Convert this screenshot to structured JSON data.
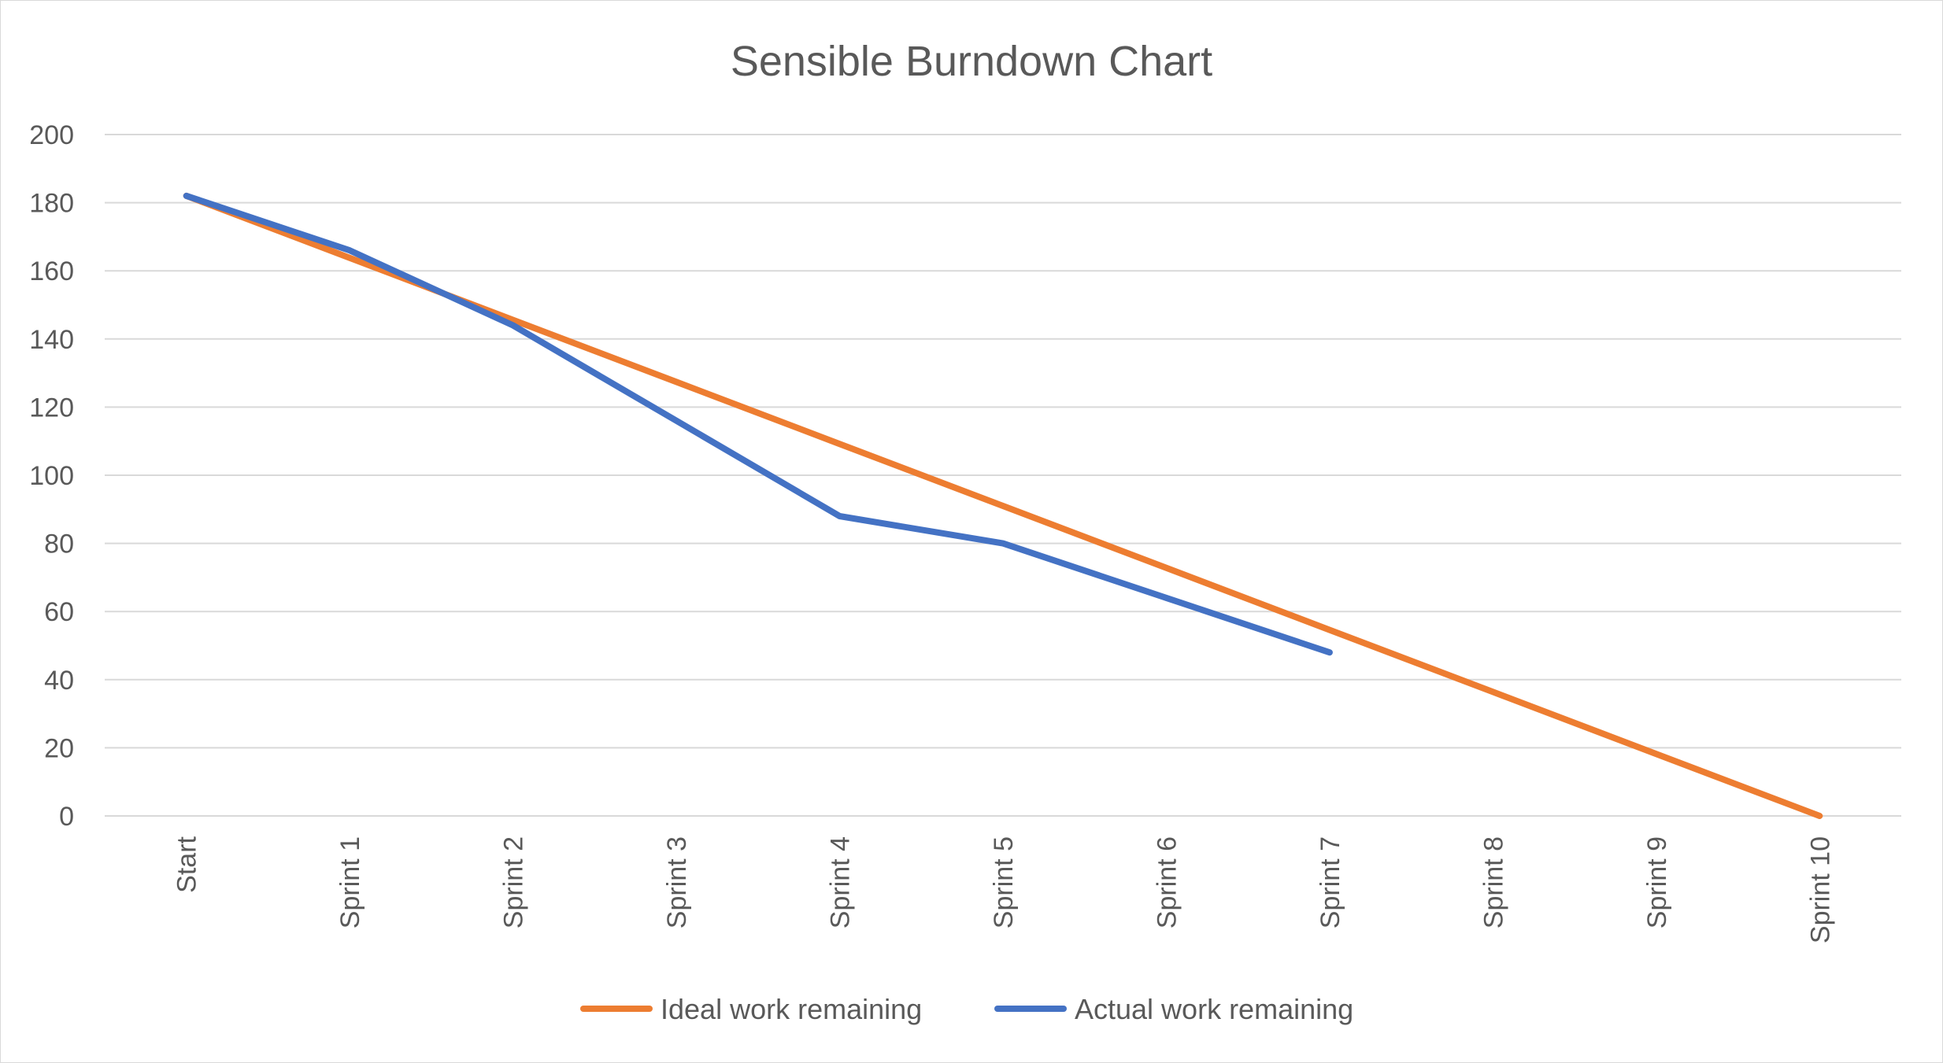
{
  "chart_data": {
    "type": "line",
    "title": "Sensible Burndown Chart",
    "xlabel": "",
    "ylabel": "",
    "categories": [
      "Start",
      "Sprint 1",
      "Sprint 2",
      "Sprint 3",
      "Sprint 4",
      "Sprint 5",
      "Sprint 6",
      "Sprint 7",
      "Sprint 8",
      "Sprint 9",
      "Sprint 10"
    ],
    "ylim": [
      0,
      200
    ],
    "yticks": [
      0,
      20,
      40,
      60,
      80,
      100,
      120,
      140,
      160,
      180,
      200
    ],
    "grid": true,
    "legend_position": "bottom",
    "series": [
      {
        "name": "Ideal work remaining",
        "color": "#ED7D31",
        "values": [
          182,
          163.8,
          145.6,
          127.4,
          109.2,
          91,
          72.8,
          54.6,
          36.4,
          18.2,
          0
        ]
      },
      {
        "name": "Actual work remaining",
        "color": "#4472C4",
        "values": [
          182,
          166,
          144,
          116,
          88,
          80,
          64,
          48,
          null,
          null,
          null
        ]
      }
    ]
  }
}
